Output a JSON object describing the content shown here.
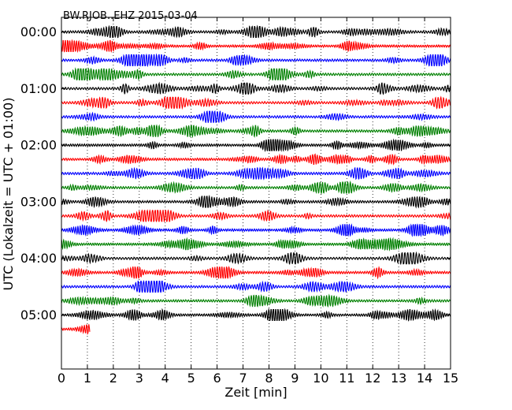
{
  "chart_data": {
    "type": "line",
    "title": "BW.RJOB..EHZ 2015-03-04",
    "xlabel": "Zeit  [min]",
    "ylabel": "UTC (Lokalzeit = UTC + 01:00)",
    "xlim": [
      0,
      15
    ],
    "x_ticks": [
      "0",
      "1",
      "2",
      "3",
      "4",
      "5",
      "6",
      "7",
      "8",
      "9",
      "10",
      "11",
      "12",
      "13",
      "14",
      "15"
    ],
    "y_ticks": [
      "00:00",
      "01:00",
      "02:00",
      "03:00",
      "04:00",
      "05:00"
    ],
    "row_minutes": 15,
    "trace_colors": [
      "#000000",
      "#ff0000",
      "#0000ff",
      "#008000"
    ],
    "rows": 22,
    "last_row_end_minute": 1.1,
    "grid": "vertical-dotted"
  }
}
